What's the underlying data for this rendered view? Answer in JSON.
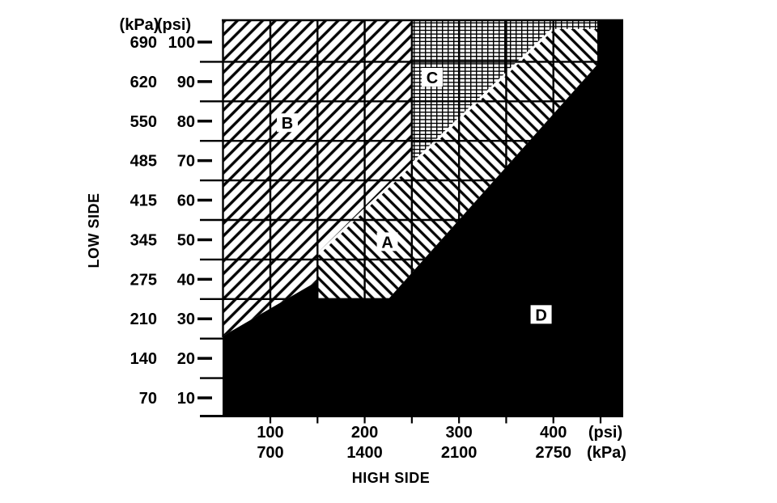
{
  "page": {
    "background": "#ffffff",
    "ink": "#000000"
  },
  "chart": {
    "x_axis_title": "HIGH SIDE",
    "y_axis_title": "LOW SIDE"
  },
  "chart_data": {
    "type": "area",
    "title": "",
    "xlabel": "HIGH SIDE",
    "ylabel": "LOW SIDE",
    "x_axis": {
      "units": [
        "psi",
        "kPa"
      ],
      "tick_labels_psi": [
        "100",
        "200",
        "300",
        "400"
      ],
      "tick_values_psi": [
        100,
        200,
        300,
        400
      ],
      "tick_labels_kpa": [
        "700",
        "1400",
        "2100",
        "2750"
      ],
      "unit_label_psi": "(psi)",
      "unit_label_kpa": "(kPa)",
      "range_psi": [
        49.4,
        474
      ]
    },
    "y_axis": {
      "units": [
        "kPa",
        "psi"
      ],
      "header_kpa": "(kPa)",
      "header_psi": "(psi)",
      "tick_labels_kpa": [
        "690",
        "620",
        "550",
        "485",
        "415",
        "345",
        "275",
        "210",
        "140",
        "70"
      ],
      "tick_labels_psi": [
        "100",
        "90",
        "80",
        "70",
        "60",
        "50",
        "40",
        "30",
        "20",
        "10"
      ],
      "tick_values_psi": [
        100,
        90,
        80,
        70,
        60,
        50,
        40,
        30,
        20,
        10
      ],
      "range_psi": [
        5.5,
        105.5
      ]
    },
    "grid": {
      "vertical_lines_psi": [
        100,
        150,
        200,
        250,
        300,
        350,
        400,
        450
      ],
      "horizontal_lines_psi": [
        95,
        85,
        75,
        65,
        55,
        45,
        35,
        25,
        15
      ]
    },
    "regions": [
      {
        "name": "B",
        "label": "B",
        "fill": "diagonal-hatch-slash",
        "label_pos_psi": [
          118,
          79.5
        ],
        "polygon_psi": [
          [
            49.4,
            105.5
          ],
          [
            249.3,
            105.5
          ],
          [
            249.3,
            68.9
          ],
          [
            149.8,
            46.2
          ],
          [
            149.8,
            39.5
          ],
          [
            49.4,
            25.6
          ]
        ]
      },
      {
        "name": "C",
        "label": "C",
        "fill": "fine-crosshatch-grid",
        "label_pos_psi": [
          271.5,
          91
        ],
        "polygon_psi": [
          [
            249.3,
            105.5
          ],
          [
            446.6,
            105.5
          ],
          [
            446.6,
            103.3
          ],
          [
            399.4,
            103.3
          ],
          [
            249.3,
            68.9
          ]
        ]
      },
      {
        "name": "A",
        "label": "A",
        "fill": "diagonal-hatch-backslash",
        "label_pos_psi": [
          224,
          49.4
        ],
        "polygon_psi": [
          [
            149.8,
            46.2
          ],
          [
            399.4,
            103.3
          ],
          [
            446.6,
            103.3
          ],
          [
            446.6,
            94.3
          ],
          [
            225.2,
            35
          ],
          [
            149.8,
            35
          ]
        ]
      },
      {
        "name": "D",
        "label": "D",
        "fill": "solid-black",
        "label_pos_psi": [
          387,
          31
        ],
        "polygon_psi": [
          [
            446.6,
            105.5
          ],
          [
            474,
            105.5
          ],
          [
            474,
            5.5
          ],
          [
            49.4,
            5.5
          ],
          [
            49.4,
            25.6
          ],
          [
            149.8,
            39.5
          ],
          [
            149.8,
            35
          ],
          [
            225.2,
            35
          ],
          [
            446.6,
            94.3
          ]
        ]
      }
    ],
    "boundary_gap_line_psi": [
      [
        149.8,
        46.2
      ],
      [
        399.4,
        103.3
      ]
    ],
    "colors": {
      "ink": "#000000",
      "background": "#ffffff"
    }
  }
}
